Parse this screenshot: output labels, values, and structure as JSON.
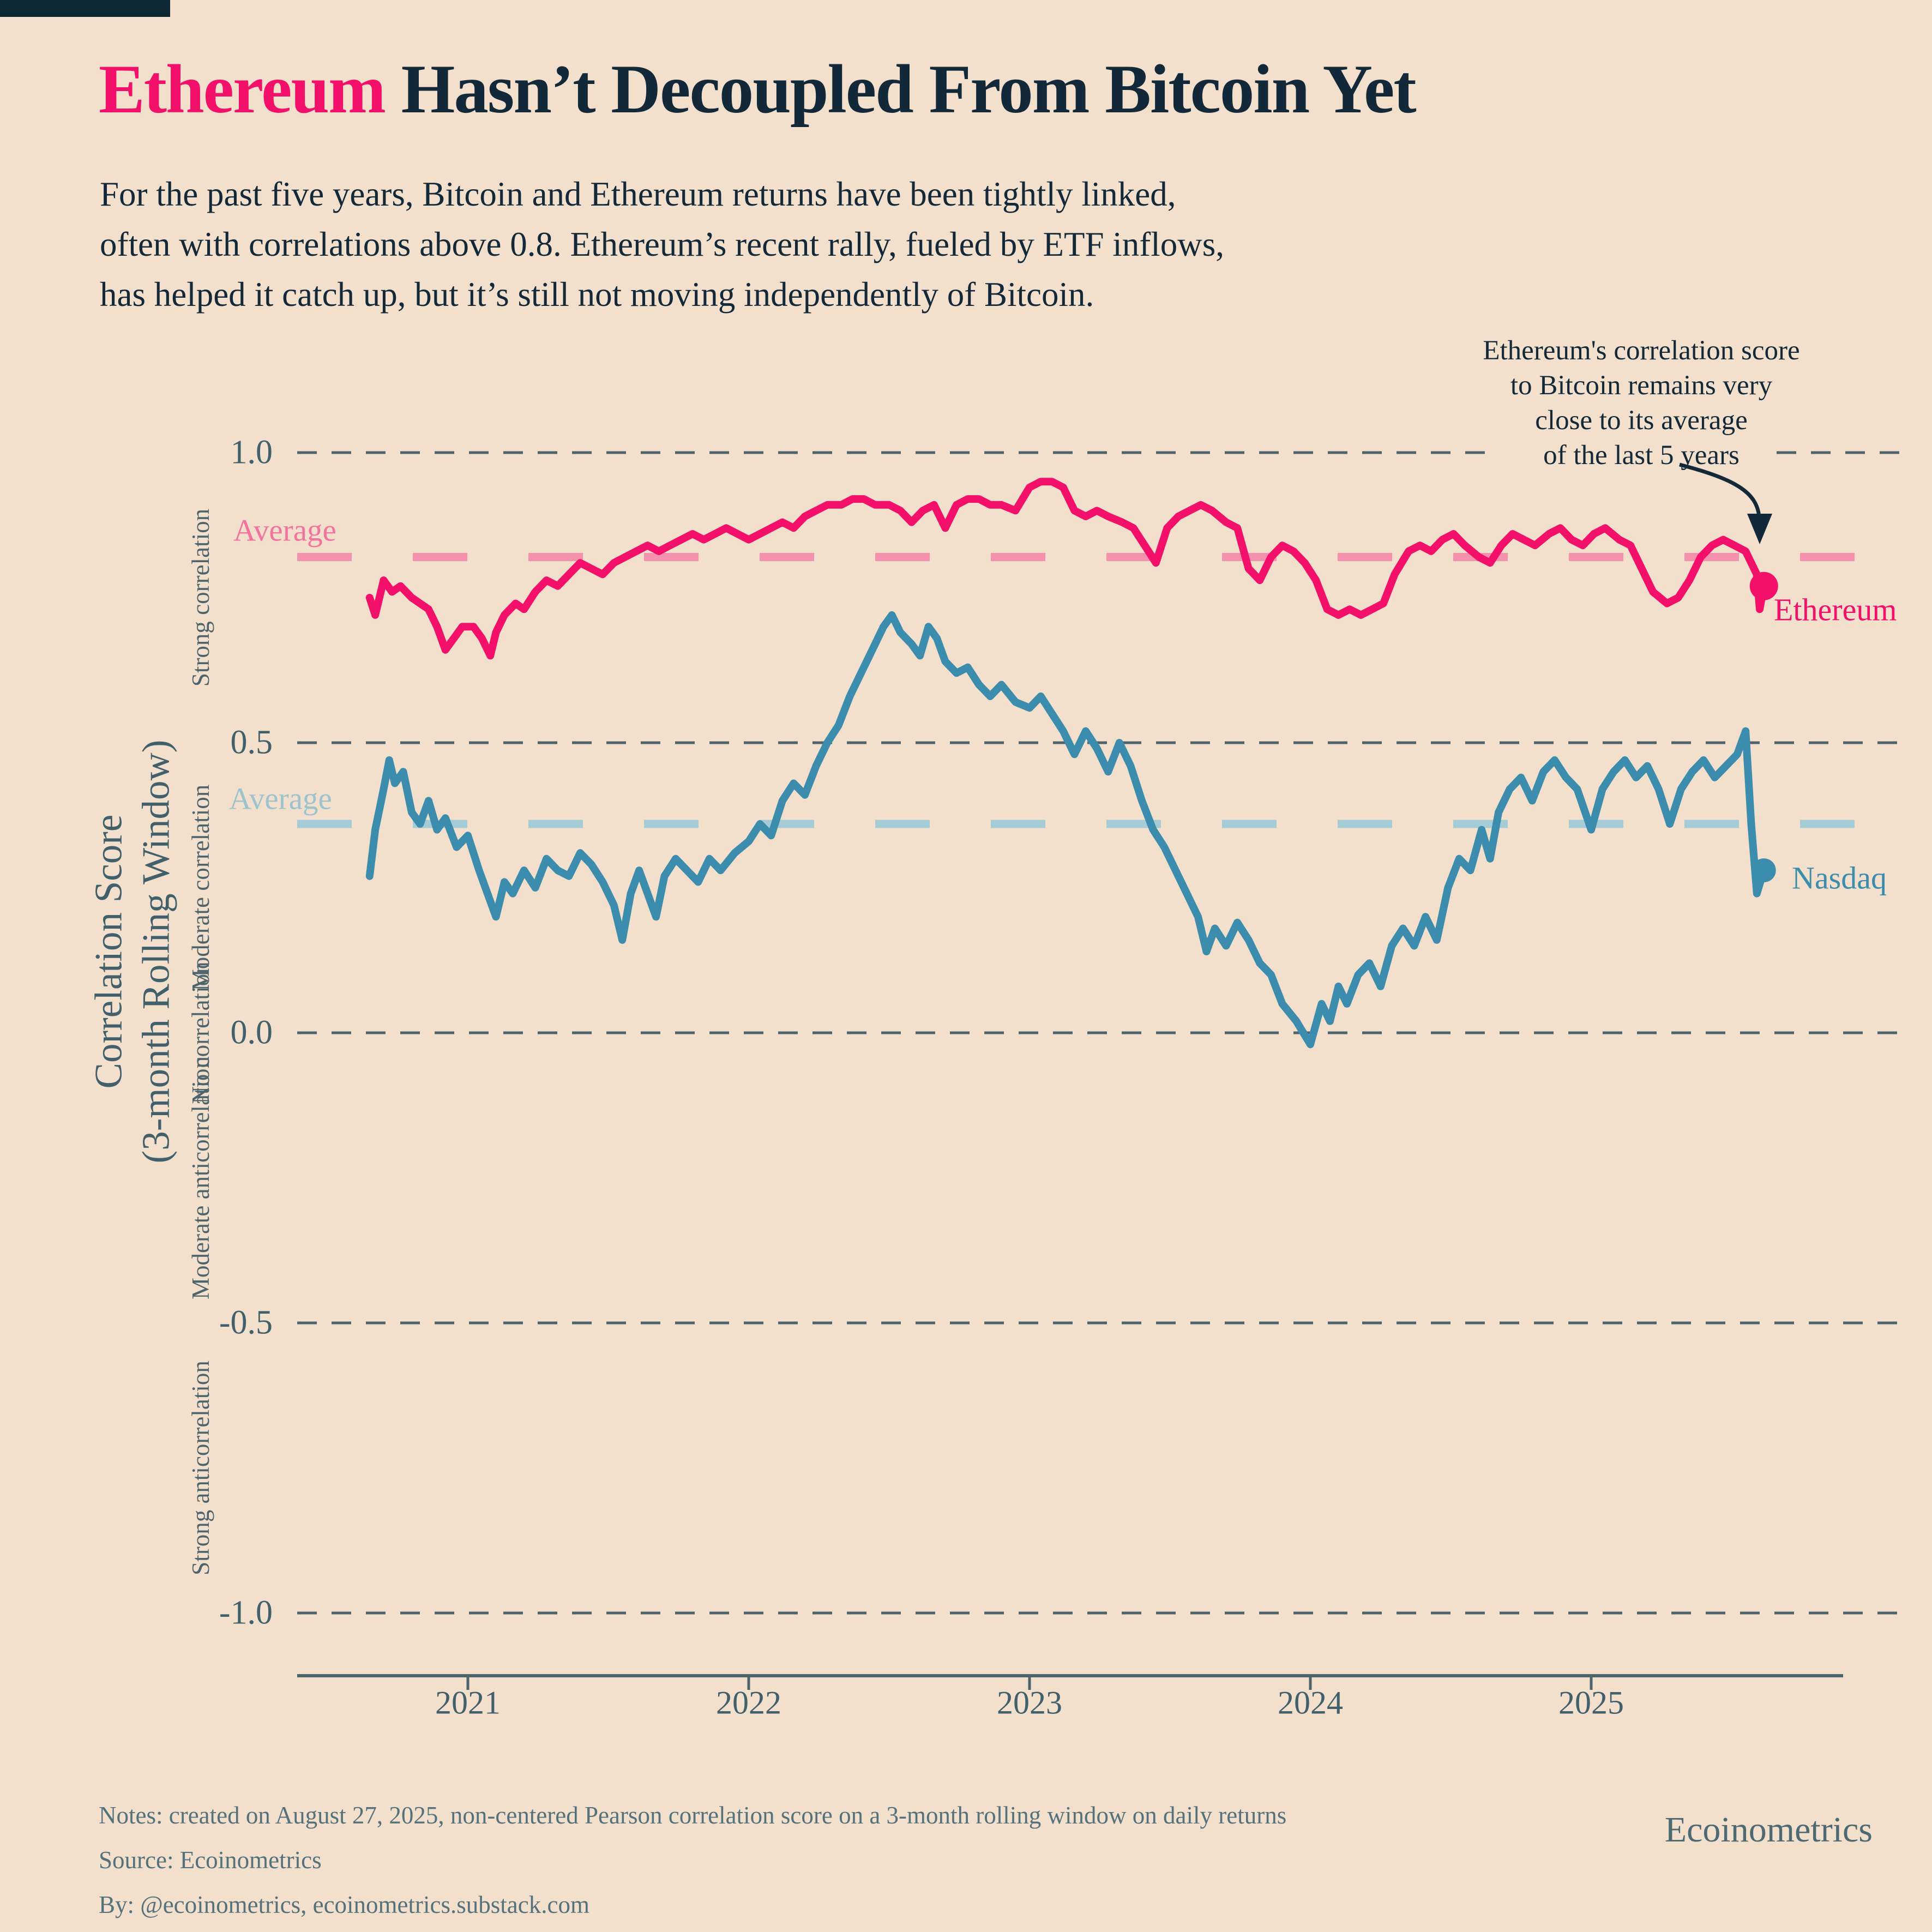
{
  "branding": {
    "corner_block_color": "#0d2733",
    "wordmark": "Ecoinometrics"
  },
  "title": {
    "highlight": "Ethereum",
    "rest": " Hasn’t Decoupled From Bitcoin Yet",
    "highlight_color": "#f2106a",
    "text_color": "#13293a"
  },
  "subtitle_lines": [
    "For the past five years, Bitcoin and Ethereum returns have been tightly linked,",
    "often with correlations above 0.8. Ethereum’s recent rally, fueled by ETF inflows,",
    "has helped it catch up, but it’s still not moving independently of Bitcoin."
  ],
  "annotation": {
    "lines": [
      "Ethereum's correlation score",
      "to Bitcoin remains very",
      "close to its average",
      "of the last 5 years"
    ]
  },
  "notes_lines": [
    "Notes: created on August 27, 2025, non-centered Pearson correlation score on a 3-month rolling window on daily returns",
    "Source: Ecoinometrics",
    "By: @ecoinometrics, ecoinometrics.substack.com"
  ],
  "colors": {
    "background": "#f3e0cc",
    "ink": "#13293a",
    "grid": "#4e646c",
    "axis_text": "#42606c",
    "ethereum": "#f2106a",
    "ethereum_average": "#f491ad",
    "nasdaq": "#3c8dad",
    "nasdaq_average": "#a4cbd6",
    "notes_text": "#54717c"
  },
  "chart_data": {
    "type": "line",
    "xlabel": "",
    "ylabel_line1": "Correlation Score",
    "ylabel_line2": "(3-month Rolling Window)",
    "x_ticks": [
      2021,
      2022,
      2023,
      2024,
      2025
    ],
    "x_range": [
      2020.65,
      2025.62
    ],
    "ylim": [
      -1.15,
      1.1
    ],
    "y_ticks": [
      1.0,
      0.5,
      0.0,
      -0.5,
      -1.0
    ],
    "y_tick_labels": [
      "1.0",
      "0.5",
      "0.0",
      "-0.5",
      "-1.0"
    ],
    "y_band_labels": [
      "Strong correlation",
      "Moderate correlation",
      "No correlation",
      "Moderate anticorrelation",
      "Strong anticorrelation"
    ],
    "y_band_centers": [
      0.75,
      0.25,
      0.0,
      -0.25,
      -0.75
    ],
    "grid": "dashed horizontal",
    "legend_position": "end-of-line labels",
    "series": [
      {
        "name": "Ethereum",
        "label": "Ethereum",
        "color": "#f2106a",
        "average": 0.82,
        "average_label": "Average",
        "points": [
          [
            2020.65,
            0.75
          ],
          [
            2020.67,
            0.72
          ],
          [
            2020.7,
            0.78
          ],
          [
            2020.73,
            0.76
          ],
          [
            2020.76,
            0.77
          ],
          [
            2020.8,
            0.75
          ],
          [
            2020.83,
            0.74
          ],
          [
            2020.86,
            0.73
          ],
          [
            2020.89,
            0.7
          ],
          [
            2020.92,
            0.66
          ],
          [
            2020.95,
            0.68
          ],
          [
            2020.98,
            0.7
          ],
          [
            2021.02,
            0.7
          ],
          [
            2021.05,
            0.68
          ],
          [
            2021.08,
            0.65
          ],
          [
            2021.1,
            0.69
          ],
          [
            2021.13,
            0.72
          ],
          [
            2021.17,
            0.74
          ],
          [
            2021.2,
            0.73
          ],
          [
            2021.24,
            0.76
          ],
          [
            2021.28,
            0.78
          ],
          [
            2021.32,
            0.77
          ],
          [
            2021.36,
            0.79
          ],
          [
            2021.4,
            0.81
          ],
          [
            2021.44,
            0.8
          ],
          [
            2021.48,
            0.79
          ],
          [
            2021.52,
            0.81
          ],
          [
            2021.56,
            0.82
          ],
          [
            2021.6,
            0.83
          ],
          [
            2021.64,
            0.84
          ],
          [
            2021.68,
            0.83
          ],
          [
            2021.72,
            0.84
          ],
          [
            2021.76,
            0.85
          ],
          [
            2021.8,
            0.86
          ],
          [
            2021.84,
            0.85
          ],
          [
            2021.88,
            0.86
          ],
          [
            2021.92,
            0.87
          ],
          [
            2021.96,
            0.86
          ],
          [
            2022.0,
            0.85
          ],
          [
            2022.04,
            0.86
          ],
          [
            2022.08,
            0.87
          ],
          [
            2022.12,
            0.88
          ],
          [
            2022.16,
            0.87
          ],
          [
            2022.2,
            0.89
          ],
          [
            2022.24,
            0.9
          ],
          [
            2022.28,
            0.91
          ],
          [
            2022.33,
            0.91
          ],
          [
            2022.37,
            0.92
          ],
          [
            2022.41,
            0.92
          ],
          [
            2022.45,
            0.91
          ],
          [
            2022.5,
            0.91
          ],
          [
            2022.54,
            0.9
          ],
          [
            2022.58,
            0.88
          ],
          [
            2022.62,
            0.9
          ],
          [
            2022.66,
            0.91
          ],
          [
            2022.7,
            0.87
          ],
          [
            2022.74,
            0.91
          ],
          [
            2022.78,
            0.92
          ],
          [
            2022.82,
            0.92
          ],
          [
            2022.86,
            0.91
          ],
          [
            2022.9,
            0.91
          ],
          [
            2022.95,
            0.9
          ],
          [
            2023.0,
            0.94
          ],
          [
            2023.04,
            0.95
          ],
          [
            2023.08,
            0.95
          ],
          [
            2023.12,
            0.94
          ],
          [
            2023.16,
            0.9
          ],
          [
            2023.2,
            0.89
          ],
          [
            2023.24,
            0.9
          ],
          [
            2023.28,
            0.89
          ],
          [
            2023.33,
            0.88
          ],
          [
            2023.37,
            0.87
          ],
          [
            2023.41,
            0.84
          ],
          [
            2023.45,
            0.81
          ],
          [
            2023.49,
            0.87
          ],
          [
            2023.53,
            0.89
          ],
          [
            2023.57,
            0.9
          ],
          [
            2023.61,
            0.91
          ],
          [
            2023.65,
            0.9
          ],
          [
            2023.7,
            0.88
          ],
          [
            2023.74,
            0.87
          ],
          [
            2023.78,
            0.8
          ],
          [
            2023.82,
            0.78
          ],
          [
            2023.86,
            0.82
          ],
          [
            2023.9,
            0.84
          ],
          [
            2023.94,
            0.83
          ],
          [
            2023.98,
            0.81
          ],
          [
            2024.02,
            0.78
          ],
          [
            2024.06,
            0.73
          ],
          [
            2024.1,
            0.72
          ],
          [
            2024.14,
            0.73
          ],
          [
            2024.18,
            0.72
          ],
          [
            2024.22,
            0.73
          ],
          [
            2024.26,
            0.74
          ],
          [
            2024.3,
            0.79
          ],
          [
            2024.35,
            0.83
          ],
          [
            2024.39,
            0.84
          ],
          [
            2024.43,
            0.83
          ],
          [
            2024.47,
            0.85
          ],
          [
            2024.51,
            0.86
          ],
          [
            2024.55,
            0.84
          ],
          [
            2024.6,
            0.82
          ],
          [
            2024.64,
            0.81
          ],
          [
            2024.68,
            0.84
          ],
          [
            2024.72,
            0.86
          ],
          [
            2024.76,
            0.85
          ],
          [
            2024.8,
            0.84
          ],
          [
            2024.85,
            0.86
          ],
          [
            2024.89,
            0.87
          ],
          [
            2024.93,
            0.85
          ],
          [
            2024.97,
            0.84
          ],
          [
            2025.01,
            0.86
          ],
          [
            2025.05,
            0.87
          ],
          [
            2025.1,
            0.85
          ],
          [
            2025.14,
            0.84
          ],
          [
            2025.18,
            0.8
          ],
          [
            2025.22,
            0.76
          ],
          [
            2025.27,
            0.74
          ],
          [
            2025.31,
            0.75
          ],
          [
            2025.35,
            0.78
          ],
          [
            2025.39,
            0.82
          ],
          [
            2025.43,
            0.84
          ],
          [
            2025.47,
            0.85
          ],
          [
            2025.51,
            0.84
          ],
          [
            2025.55,
            0.83
          ],
          [
            2025.57,
            0.81
          ],
          [
            2025.59,
            0.79
          ],
          [
            2025.6,
            0.73
          ],
          [
            2025.615,
            0.77
          ]
        ]
      },
      {
        "name": "Nasdaq",
        "label": "Nasdaq",
        "color": "#3c8dad",
        "average": 0.36,
        "average_label": "Average",
        "points": [
          [
            2020.65,
            0.27
          ],
          [
            2020.67,
            0.35
          ],
          [
            2020.7,
            0.42
          ],
          [
            2020.72,
            0.47
          ],
          [
            2020.74,
            0.43
          ],
          [
            2020.77,
            0.45
          ],
          [
            2020.8,
            0.38
          ],
          [
            2020.83,
            0.36
          ],
          [
            2020.86,
            0.4
          ],
          [
            2020.89,
            0.35
          ],
          [
            2020.92,
            0.37
          ],
          [
            2020.96,
            0.32
          ],
          [
            2021.0,
            0.34
          ],
          [
            2021.04,
            0.28
          ],
          [
            2021.07,
            0.24
          ],
          [
            2021.1,
            0.2
          ],
          [
            2021.13,
            0.26
          ],
          [
            2021.16,
            0.24
          ],
          [
            2021.2,
            0.28
          ],
          [
            2021.24,
            0.25
          ],
          [
            2021.28,
            0.3
          ],
          [
            2021.32,
            0.28
          ],
          [
            2021.36,
            0.27
          ],
          [
            2021.4,
            0.31
          ],
          [
            2021.44,
            0.29
          ],
          [
            2021.48,
            0.26
          ],
          [
            2021.52,
            0.22
          ],
          [
            2021.55,
            0.16
          ],
          [
            2021.58,
            0.24
          ],
          [
            2021.61,
            0.28
          ],
          [
            2021.64,
            0.24
          ],
          [
            2021.67,
            0.2
          ],
          [
            2021.7,
            0.27
          ],
          [
            2021.74,
            0.3
          ],
          [
            2021.78,
            0.28
          ],
          [
            2021.82,
            0.26
          ],
          [
            2021.86,
            0.3
          ],
          [
            2021.9,
            0.28
          ],
          [
            2021.95,
            0.31
          ],
          [
            2022.0,
            0.33
          ],
          [
            2022.04,
            0.36
          ],
          [
            2022.08,
            0.34
          ],
          [
            2022.12,
            0.4
          ],
          [
            2022.16,
            0.43
          ],
          [
            2022.2,
            0.41
          ],
          [
            2022.24,
            0.46
          ],
          [
            2022.28,
            0.5
          ],
          [
            2022.32,
            0.53
          ],
          [
            2022.36,
            0.58
          ],
          [
            2022.4,
            0.62
          ],
          [
            2022.44,
            0.66
          ],
          [
            2022.48,
            0.7
          ],
          [
            2022.51,
            0.72
          ],
          [
            2022.54,
            0.69
          ],
          [
            2022.58,
            0.67
          ],
          [
            2022.61,
            0.65
          ],
          [
            2022.64,
            0.7
          ],
          [
            2022.67,
            0.68
          ],
          [
            2022.7,
            0.64
          ],
          [
            2022.74,
            0.62
          ],
          [
            2022.78,
            0.63
          ],
          [
            2022.82,
            0.6
          ],
          [
            2022.86,
            0.58
          ],
          [
            2022.9,
            0.6
          ],
          [
            2022.95,
            0.57
          ],
          [
            2023.0,
            0.56
          ],
          [
            2023.04,
            0.58
          ],
          [
            2023.08,
            0.55
          ],
          [
            2023.12,
            0.52
          ],
          [
            2023.16,
            0.48
          ],
          [
            2023.2,
            0.52
          ],
          [
            2023.24,
            0.49
          ],
          [
            2023.28,
            0.45
          ],
          [
            2023.32,
            0.5
          ],
          [
            2023.36,
            0.46
          ],
          [
            2023.4,
            0.4
          ],
          [
            2023.44,
            0.35
          ],
          [
            2023.48,
            0.32
          ],
          [
            2023.52,
            0.28
          ],
          [
            2023.56,
            0.24
          ],
          [
            2023.6,
            0.2
          ],
          [
            2023.63,
            0.14
          ],
          [
            2023.66,
            0.18
          ],
          [
            2023.7,
            0.15
          ],
          [
            2023.74,
            0.19
          ],
          [
            2023.78,
            0.16
          ],
          [
            2023.82,
            0.12
          ],
          [
            2023.86,
            0.1
          ],
          [
            2023.9,
            0.05
          ],
          [
            2023.95,
            0.02
          ],
          [
            2024.0,
            -0.02
          ],
          [
            2024.04,
            0.05
          ],
          [
            2024.07,
            0.02
          ],
          [
            2024.1,
            0.08
          ],
          [
            2024.13,
            0.05
          ],
          [
            2024.17,
            0.1
          ],
          [
            2024.21,
            0.12
          ],
          [
            2024.25,
            0.08
          ],
          [
            2024.29,
            0.15
          ],
          [
            2024.33,
            0.18
          ],
          [
            2024.37,
            0.15
          ],
          [
            2024.41,
            0.2
          ],
          [
            2024.45,
            0.16
          ],
          [
            2024.49,
            0.25
          ],
          [
            2024.53,
            0.3
          ],
          [
            2024.57,
            0.28
          ],
          [
            2024.61,
            0.35
          ],
          [
            2024.64,
            0.3
          ],
          [
            2024.67,
            0.38
          ],
          [
            2024.71,
            0.42
          ],
          [
            2024.75,
            0.44
          ],
          [
            2024.79,
            0.4
          ],
          [
            2024.83,
            0.45
          ],
          [
            2024.87,
            0.47
          ],
          [
            2024.91,
            0.44
          ],
          [
            2024.95,
            0.42
          ],
          [
            2025.0,
            0.35
          ],
          [
            2025.04,
            0.42
          ],
          [
            2025.08,
            0.45
          ],
          [
            2025.12,
            0.47
          ],
          [
            2025.16,
            0.44
          ],
          [
            2025.2,
            0.46
          ],
          [
            2025.24,
            0.42
          ],
          [
            2025.28,
            0.36
          ],
          [
            2025.32,
            0.42
          ],
          [
            2025.36,
            0.45
          ],
          [
            2025.4,
            0.47
          ],
          [
            2025.44,
            0.44
          ],
          [
            2025.48,
            0.46
          ],
          [
            2025.52,
            0.48
          ],
          [
            2025.55,
            0.52
          ],
          [
            2025.57,
            0.36
          ],
          [
            2025.59,
            0.24
          ],
          [
            2025.615,
            0.28
          ]
        ]
      }
    ]
  }
}
